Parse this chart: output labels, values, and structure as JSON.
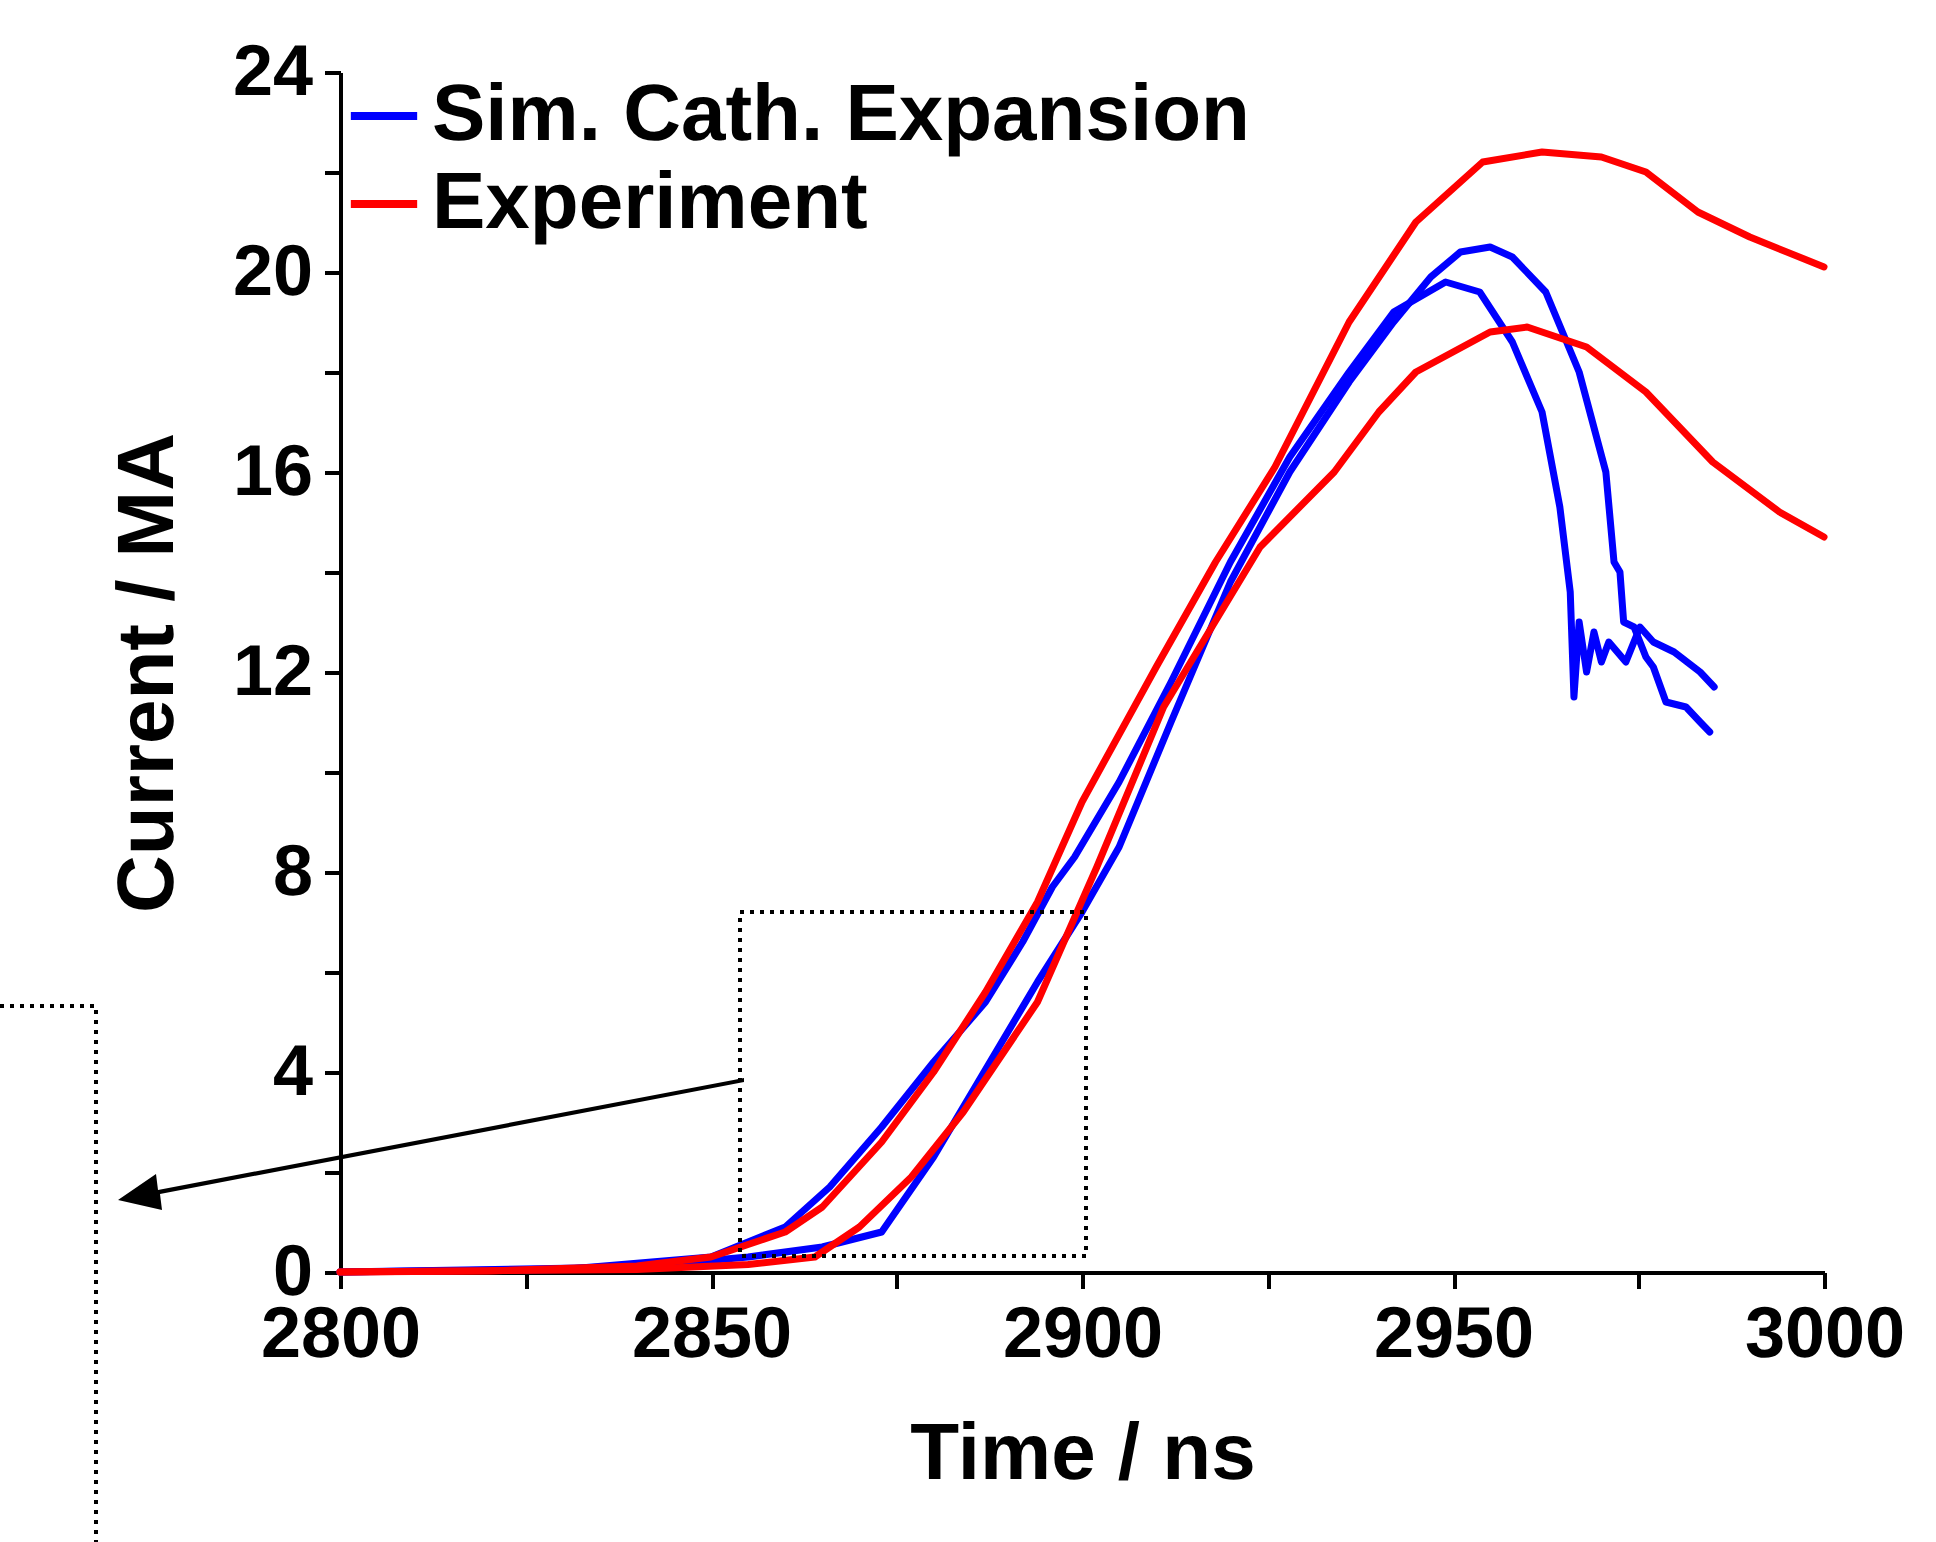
{
  "chart_data": {
    "type": "line",
    "xlabel": "Time / ns",
    "ylabel": "Current / MA",
    "legend": "top left",
    "xlim": [
      2800,
      3000
    ],
    "ylim": [
      0,
      24
    ],
    "xticks": [
      2800,
      {
        "value": 2825,
        "label": null
      },
      2850,
      {
        "value": 2875,
        "label": null
      },
      2900,
      {
        "value": 2925,
        "label": null
      },
      2950,
      {
        "value": 2975,
        "label": null
      },
      3000
    ],
    "yticks": [
      0,
      {
        "value": 2,
        "label": null
      },
      4,
      {
        "value": 6,
        "label": null
      },
      8,
      {
        "value": 10,
        "label": null
      },
      12,
      {
        "value": 14,
        "label": null
      },
      16,
      {
        "value": 18,
        "label": null
      },
      20,
      {
        "value": 22,
        "label": null
      },
      24
    ],
    "series": [
      {
        "name": "Sim. Cath. Expansion",
        "color": "#0000ff",
        "x": [
          2800,
          2830,
          2850,
          2860,
          2866,
          2873,
          2880,
          2887,
          2892,
          2896,
          2899,
          2905,
          2912,
          2920,
          2928,
          2936,
          2942,
          2949,
          2953.6,
          2958,
          2962,
          2964.4,
          2965.8,
          2966.3,
          2967,
          2968,
          2969,
          2970,
          2971,
          2973.3,
          2975.2,
          2977,
          2979.8,
          2983.3,
          2985.2
        ],
        "values": [
          0,
          0.05,
          0.3,
          0.9,
          1.7,
          2.9,
          4.2,
          5.4,
          6.6,
          7.7,
          8.3,
          9.8,
          11.8,
          14.2,
          16.3,
          18.0,
          19.2,
          19.8,
          19.6,
          18.6,
          17.2,
          15.3,
          13.6,
          11.5,
          13.0,
          12.0,
          12.8,
          12.2,
          12.6,
          12.2,
          12.9,
          12.6,
          12.4,
          12.0,
          11.7
        ]
      },
      {
        "color": "#0000ff",
        "x": [
          2800,
          2840,
          2855,
          2865,
          2873,
          2880,
          2886,
          2894,
          2900,
          2905,
          2912,
          2920,
          2928,
          2936,
          2942,
          2947,
          2951,
          2955,
          2958,
          2962.5,
          2967,
          2970.6,
          2971.7,
          2972.5,
          2973,
          2974.4,
          2976,
          2977,
          2978.7,
          2981.4,
          2983.3,
          2984.6
        ],
        "values": [
          0,
          0.1,
          0.3,
          0.5,
          0.8,
          2.3,
          3.8,
          5.8,
          7.2,
          8.5,
          11.0,
          13.8,
          16.0,
          17.8,
          19.0,
          19.9,
          20.4,
          20.5,
          20.3,
          19.6,
          18.0,
          16.0,
          14.2,
          14.0,
          13.0,
          12.9,
          12.3,
          12.1,
          11.4,
          11.3,
          11.0,
          10.8
        ]
      },
      {
        "name": "Experiment",
        "color": "#ff0000",
        "x": [
          2800,
          2820,
          2840,
          2850,
          2860,
          2865,
          2873,
          2880,
          2887,
          2894,
          2900,
          2910,
          2918,
          2926,
          2936,
          2945,
          2954,
          2962,
          2970,
          2976,
          2983,
          2990,
          3000
        ],
        "values": [
          0,
          0.02,
          0.12,
          0.3,
          0.8,
          1.3,
          2.6,
          4.0,
          5.6,
          7.4,
          9.4,
          12.1,
          14.2,
          16.1,
          19.0,
          21.0,
          22.2,
          22.4,
          22.3,
          22.0,
          21.2,
          20.7,
          20.1
        ]
      },
      {
        "color": "#ff0000",
        "x": [
          2800,
          2840,
          2855,
          2864,
          2870,
          2877,
          2884,
          2894,
          2902,
          2911,
          2924,
          2934,
          2940,
          2945,
          2950,
          2955,
          2960,
          2968,
          2976,
          2985,
          2994,
          3000
        ],
        "values": [
          0,
          0.05,
          0.15,
          0.3,
          0.9,
          1.9,
          3.2,
          5.4,
          8.1,
          11.3,
          14.5,
          16.0,
          17.2,
          18.0,
          18.4,
          18.8,
          18.9,
          18.5,
          17.6,
          16.2,
          15.2,
          14.7
        ]
      }
    ]
  }
}
